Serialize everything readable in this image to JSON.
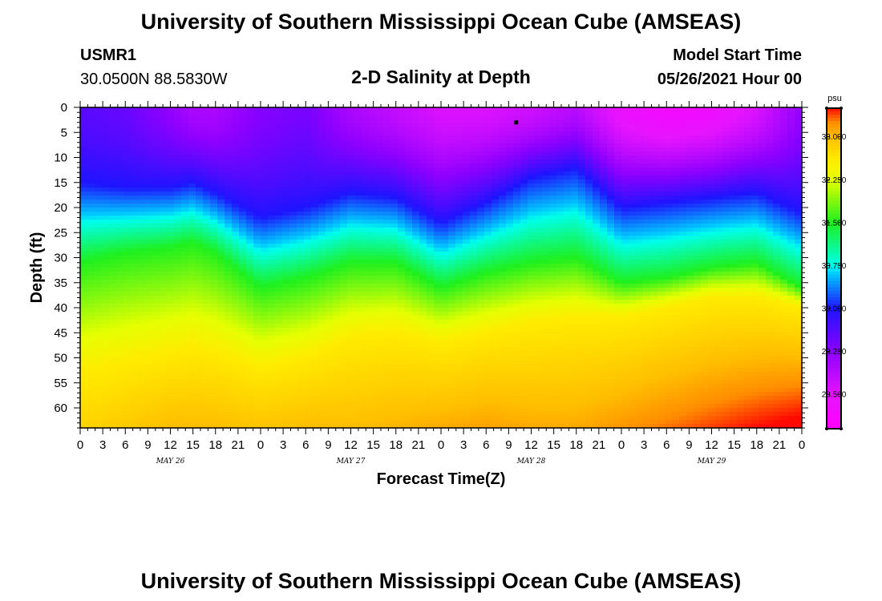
{
  "header": {
    "title": "University of Southern Mississippi Ocean Cube (AMSEAS)",
    "station": "USMR1",
    "location": "30.0500N  88.5830W",
    "subtitle": "2-D Salinity at Depth",
    "start_label": "Model Start Time",
    "start_value": "05/26/2021 Hour 00"
  },
  "footer": {
    "title": "University of Southern Mississippi Ocean Cube (AMSEAS)"
  },
  "chart_data": {
    "type": "heatmap",
    "title": "2-D Salinity at Depth",
    "xlabel": "Forecast Time(Z)",
    "ylabel": "Depth (ft)",
    "x_range": [
      0,
      96
    ],
    "y_range": [
      0,
      64
    ],
    "x_tick_labels": [
      "0",
      "3",
      "6",
      "9",
      "12",
      "15",
      "18",
      "21",
      "0",
      "3",
      "6",
      "9",
      "12",
      "15",
      "18",
      "21",
      "0",
      "3",
      "6",
      "9",
      "12",
      "15",
      "18",
      "21",
      "0",
      "3",
      "6",
      "9",
      "12",
      "15",
      "18",
      "21",
      "0"
    ],
    "day_labels": [
      "MAY 26",
      "MAY 27",
      "MAY 28",
      "MAY 29"
    ],
    "y_ticks": [
      0,
      5,
      10,
      15,
      20,
      25,
      30,
      35,
      40,
      45,
      50,
      55,
      60
    ],
    "colorbar": {
      "unit": "psu",
      "range": [
        27.9,
        33.5
      ],
      "ticks": [
        28.5,
        29.25,
        30.0,
        30.75,
        31.5,
        32.25,
        33.0
      ],
      "tick_labels": [
        "28.500",
        "29.250",
        "30.000",
        "30.750",
        "31.500",
        "32.250",
        "33.000"
      ]
    },
    "layer_depth_profiles": {
      "times_hours": [
        0,
        6,
        12,
        15,
        18,
        24,
        30,
        36,
        42,
        48,
        54,
        60,
        66,
        72,
        78,
        84,
        90,
        96
      ],
      "salinity_30_0_depth_ft": [
        15,
        16,
        16,
        15,
        17,
        22,
        20,
        17,
        18,
        23,
        19,
        14,
        12,
        20,
        19,
        18,
        17,
        21
      ],
      "salinity_31_5_depth_ft": [
        31,
        29,
        28,
        27,
        29,
        36,
        34,
        31,
        31,
        36,
        33,
        31,
        30,
        35,
        34,
        32,
        31,
        36
      ],
      "salinity_32_6_depth_ft": [
        53,
        51,
        49,
        48,
        49,
        52,
        50,
        46,
        45,
        47,
        45,
        43,
        42,
        42,
        40,
        38,
        38,
        40
      ]
    },
    "surface_salinity_psu": [
      29.6,
      29.5,
      29.2,
      29.0,
      29.0,
      29.3,
      29.4,
      29.0,
      28.8,
      28.6,
      28.6,
      28.7,
      28.9,
      28.4,
      28.2,
      28.3,
      28.6,
      29.2
    ],
    "bottom_salinity_psu": [
      32.8,
      32.9,
      33.0,
      33.0,
      33.0,
      32.95,
      33.0,
      33.0,
      33.05,
      33.1,
      33.15,
      33.1,
      33.1,
      33.2,
      33.3,
      33.4,
      33.5,
      33.6
    ],
    "marker": {
      "time_hours": 58,
      "depth_ft": 3
    }
  }
}
